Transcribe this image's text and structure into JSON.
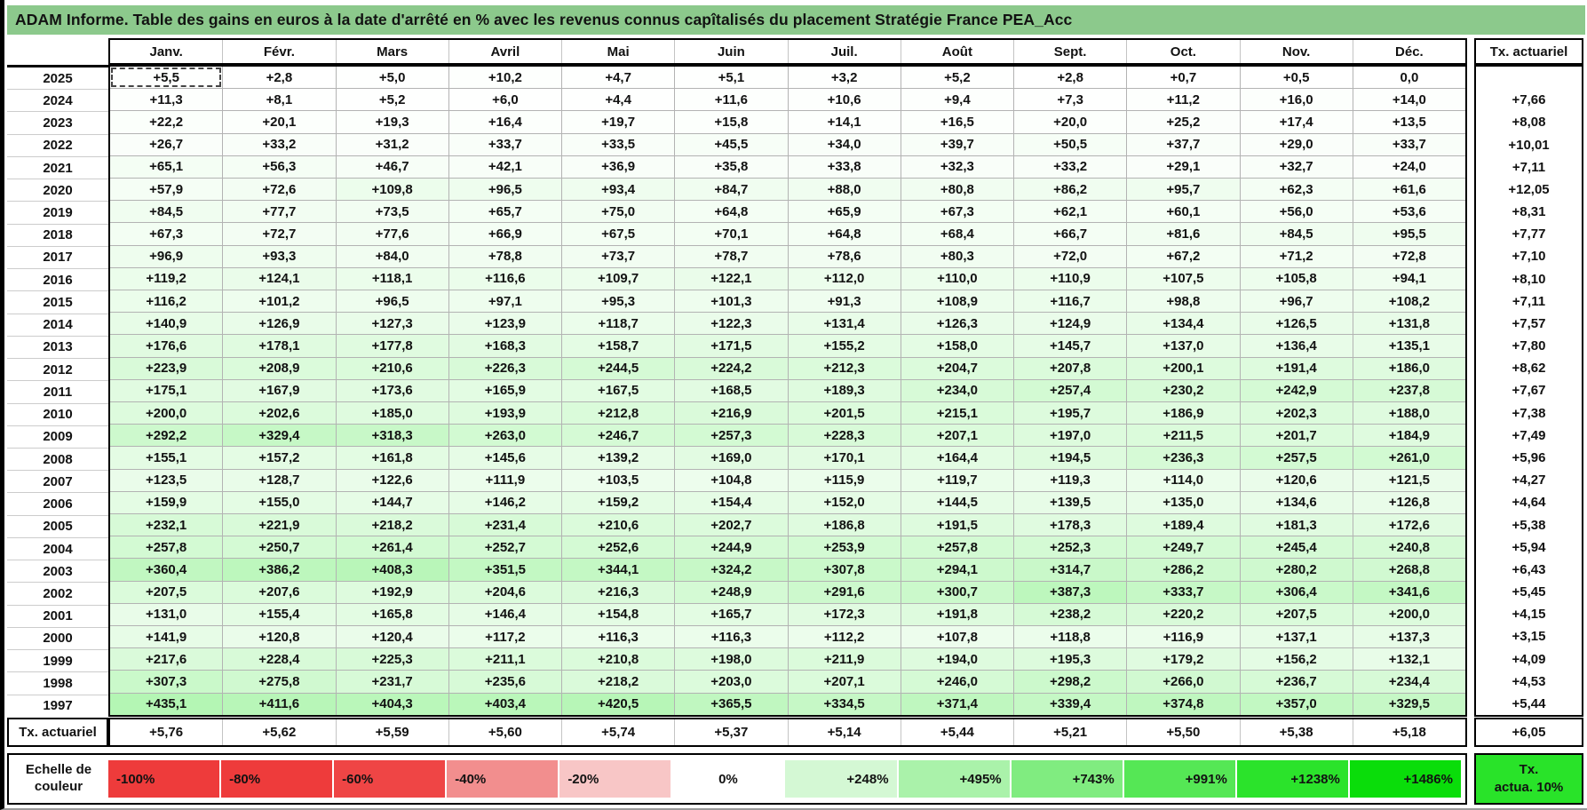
{
  "title": "ADAM Informe. Table des gains en euros à la date d'arrêté en % avec les revenus connus capîtalisés du placement Stratégie France PEA_Acc",
  "months": [
    "Janv.",
    "Févr.",
    "Mars",
    "Avril",
    "Mai",
    "Juin",
    "Juil.",
    "Août",
    "Sept.",
    "Oct.",
    "Nov.",
    "Déc."
  ],
  "tx_header": "Tx. actuariel",
  "footer_label": "Tx. actuariel",
  "footer_tx": "+6,05",
  "legend_label_line1": "Echelle de",
  "legend_label_line2": "couleur",
  "tx_box_line1": "Tx.",
  "tx_box_line2": "actua. 10%",
  "scale_max_value": 1486,
  "selected_cell": {
    "year": "2025",
    "month": "Janv."
  },
  "colors": {
    "title_bg": "#8cc98c",
    "scale_max_green": "#00e000",
    "tx_box_green": "#29e329",
    "grid_line": "#b3b3b3"
  },
  "rows": [
    {
      "year": "2025",
      "values": [
        "+5,5",
        "+2,8",
        "+5,0",
        "+10,2",
        "+4,7",
        "+5,1",
        "+3,2",
        "+5,2",
        "+2,8",
        "+0,7",
        "+0,5",
        "0,0"
      ],
      "tx": ""
    },
    {
      "year": "2024",
      "values": [
        "+11,3",
        "+8,1",
        "+5,2",
        "+6,0",
        "+4,4",
        "+11,6",
        "+10,6",
        "+9,4",
        "+7,3",
        "+11,2",
        "+16,0",
        "+14,0"
      ],
      "tx": "+7,66"
    },
    {
      "year": "2023",
      "values": [
        "+22,2",
        "+20,1",
        "+19,3",
        "+16,4",
        "+19,7",
        "+15,8",
        "+14,1",
        "+16,5",
        "+20,0",
        "+25,2",
        "+17,4",
        "+13,5"
      ],
      "tx": "+8,08"
    },
    {
      "year": "2022",
      "values": [
        "+26,7",
        "+33,2",
        "+31,2",
        "+33,7",
        "+33,5",
        "+45,5",
        "+34,0",
        "+39,7",
        "+50,5",
        "+37,7",
        "+29,0",
        "+33,7"
      ],
      "tx": "+10,01"
    },
    {
      "year": "2021",
      "values": [
        "+65,1",
        "+56,3",
        "+46,7",
        "+42,1",
        "+36,9",
        "+35,8",
        "+33,8",
        "+32,3",
        "+33,2",
        "+29,1",
        "+32,7",
        "+24,0"
      ],
      "tx": "+7,11"
    },
    {
      "year": "2020",
      "values": [
        "+57,9",
        "+72,6",
        "+109,8",
        "+96,5",
        "+93,4",
        "+84,7",
        "+88,0",
        "+80,8",
        "+86,2",
        "+95,7",
        "+62,3",
        "+61,6"
      ],
      "tx": "+12,05"
    },
    {
      "year": "2019",
      "values": [
        "+84,5",
        "+77,7",
        "+73,5",
        "+65,7",
        "+75,0",
        "+64,8",
        "+65,9",
        "+67,3",
        "+62,1",
        "+60,1",
        "+56,0",
        "+53,6"
      ],
      "tx": "+8,31"
    },
    {
      "year": "2018",
      "values": [
        "+67,3",
        "+72,7",
        "+77,6",
        "+66,9",
        "+67,5",
        "+70,1",
        "+64,8",
        "+68,4",
        "+66,7",
        "+81,6",
        "+84,5",
        "+95,5"
      ],
      "tx": "+7,77"
    },
    {
      "year": "2017",
      "values": [
        "+96,9",
        "+93,3",
        "+84,0",
        "+78,8",
        "+73,7",
        "+78,7",
        "+78,6",
        "+80,3",
        "+72,0",
        "+67,2",
        "+71,2",
        "+72,8"
      ],
      "tx": "+7,10"
    },
    {
      "year": "2016",
      "values": [
        "+119,2",
        "+124,1",
        "+118,1",
        "+116,6",
        "+109,7",
        "+122,1",
        "+112,0",
        "+110,0",
        "+110,9",
        "+107,5",
        "+105,8",
        "+94,1"
      ],
      "tx": "+8,10"
    },
    {
      "year": "2015",
      "values": [
        "+116,2",
        "+101,2",
        "+96,5",
        "+97,1",
        "+95,3",
        "+101,3",
        "+91,3",
        "+108,9",
        "+116,7",
        "+98,8",
        "+96,7",
        "+108,2"
      ],
      "tx": "+7,11"
    },
    {
      "year": "2014",
      "values": [
        "+140,9",
        "+126,9",
        "+127,3",
        "+123,9",
        "+118,7",
        "+122,3",
        "+131,4",
        "+126,3",
        "+124,9",
        "+134,4",
        "+126,5",
        "+131,8"
      ],
      "tx": "+7,57"
    },
    {
      "year": "2013",
      "values": [
        "+176,6",
        "+178,1",
        "+177,8",
        "+168,3",
        "+158,7",
        "+171,5",
        "+155,2",
        "+158,0",
        "+145,7",
        "+137,0",
        "+136,4",
        "+135,1"
      ],
      "tx": "+7,80"
    },
    {
      "year": "2012",
      "values": [
        "+223,9",
        "+208,9",
        "+210,6",
        "+226,3",
        "+244,5",
        "+224,2",
        "+212,3",
        "+204,7",
        "+207,8",
        "+200,1",
        "+191,4",
        "+186,0"
      ],
      "tx": "+8,62"
    },
    {
      "year": "2011",
      "values": [
        "+175,1",
        "+167,9",
        "+173,6",
        "+165,9",
        "+167,5",
        "+168,5",
        "+189,3",
        "+234,0",
        "+257,4",
        "+230,2",
        "+242,9",
        "+237,8"
      ],
      "tx": "+7,67"
    },
    {
      "year": "2010",
      "values": [
        "+200,0",
        "+202,6",
        "+185,0",
        "+193,9",
        "+212,8",
        "+216,9",
        "+201,5",
        "+215,1",
        "+195,7",
        "+186,9",
        "+202,3",
        "+188,0"
      ],
      "tx": "+7,38"
    },
    {
      "year": "2009",
      "values": [
        "+292,2",
        "+329,4",
        "+318,3",
        "+263,0",
        "+246,7",
        "+257,3",
        "+228,3",
        "+207,1",
        "+197,0",
        "+211,5",
        "+201,7",
        "+184,9"
      ],
      "tx": "+7,49"
    },
    {
      "year": "2008",
      "values": [
        "+155,1",
        "+157,2",
        "+161,8",
        "+145,6",
        "+139,2",
        "+169,0",
        "+170,1",
        "+164,4",
        "+194,5",
        "+236,3",
        "+257,5",
        "+261,0"
      ],
      "tx": "+5,96"
    },
    {
      "year": "2007",
      "values": [
        "+123,5",
        "+128,7",
        "+122,6",
        "+111,9",
        "+103,5",
        "+104,8",
        "+115,9",
        "+119,7",
        "+119,3",
        "+114,0",
        "+120,6",
        "+121,5"
      ],
      "tx": "+4,27"
    },
    {
      "year": "2006",
      "values": [
        "+159,9",
        "+155,0",
        "+144,7",
        "+146,2",
        "+159,2",
        "+154,4",
        "+152,0",
        "+144,5",
        "+139,5",
        "+135,0",
        "+134,6",
        "+126,8"
      ],
      "tx": "+4,64"
    },
    {
      "year": "2005",
      "values": [
        "+232,1",
        "+221,9",
        "+218,2",
        "+231,4",
        "+210,6",
        "+202,7",
        "+186,8",
        "+191,5",
        "+178,3",
        "+189,4",
        "+181,3",
        "+172,6"
      ],
      "tx": "+5,38"
    },
    {
      "year": "2004",
      "values": [
        "+257,8",
        "+250,7",
        "+261,4",
        "+252,7",
        "+252,6",
        "+244,9",
        "+253,9",
        "+257,8",
        "+252,3",
        "+249,7",
        "+245,4",
        "+240,8"
      ],
      "tx": "+5,94"
    },
    {
      "year": "2003",
      "values": [
        "+360,4",
        "+386,2",
        "+408,3",
        "+351,5",
        "+344,1",
        "+324,2",
        "+307,8",
        "+294,1",
        "+314,7",
        "+286,2",
        "+280,2",
        "+268,8"
      ],
      "tx": "+6,43"
    },
    {
      "year": "2002",
      "values": [
        "+207,5",
        "+207,6",
        "+192,9",
        "+204,6",
        "+216,3",
        "+248,9",
        "+291,6",
        "+300,7",
        "+387,3",
        "+333,7",
        "+306,4",
        "+341,6"
      ],
      "tx": "+5,45"
    },
    {
      "year": "2001",
      "values": [
        "+131,0",
        "+155,4",
        "+165,8",
        "+146,4",
        "+154,8",
        "+165,7",
        "+172,3",
        "+191,8",
        "+238,2",
        "+220,2",
        "+207,5",
        "+200,0"
      ],
      "tx": "+4,15"
    },
    {
      "year": "2000",
      "values": [
        "+141,9",
        "+120,8",
        "+120,4",
        "+117,2",
        "+116,3",
        "+116,3",
        "+112,2",
        "+107,8",
        "+118,8",
        "+116,9",
        "+137,1",
        "+137,3"
      ],
      "tx": "+3,15"
    },
    {
      "year": "1999",
      "values": [
        "+217,6",
        "+228,4",
        "+225,3",
        "+211,1",
        "+210,8",
        "+198,0",
        "+211,9",
        "+194,0",
        "+195,3",
        "+179,2",
        "+156,2",
        "+132,1"
      ],
      "tx": "+4,09"
    },
    {
      "year": "1998",
      "values": [
        "+307,3",
        "+275,8",
        "+231,7",
        "+235,6",
        "+218,2",
        "+203,0",
        "+207,1",
        "+246,0",
        "+298,2",
        "+266,0",
        "+236,7",
        "+234,4"
      ],
      "tx": "+4,53"
    },
    {
      "year": "1997",
      "values": [
        "+435,1",
        "+411,6",
        "+404,3",
        "+403,4",
        "+420,5",
        "+365,5",
        "+334,5",
        "+371,4",
        "+339,4",
        "+374,8",
        "+357,0",
        "+329,5"
      ],
      "tx": "+5,44"
    }
  ],
  "footer_values": [
    "+5,76",
    "+5,62",
    "+5,59",
    "+5,60",
    "+5,74",
    "+5,37",
    "+5,14",
    "+5,44",
    "+5,21",
    "+5,50",
    "+5,38",
    "+5,18"
  ],
  "legend": [
    {
      "label": "-100%",
      "color": "#ee3b3b",
      "align": "left"
    },
    {
      "label": "-80%",
      "color": "#ee3b3b",
      "align": "left"
    },
    {
      "label": "-60%",
      "color": "#ef4545",
      "align": "left"
    },
    {
      "label": "-40%",
      "color": "#f28e8e",
      "align": "left"
    },
    {
      "label": "-20%",
      "color": "#f8c6c6",
      "align": "left"
    },
    {
      "label": "0%",
      "color": "#ffffff",
      "align": "center"
    },
    {
      "label": "+248%",
      "color": "#d4f8d4",
      "align": "right"
    },
    {
      "label": "+495%",
      "color": "#aaf2aa",
      "align": "right"
    },
    {
      "label": "+743%",
      "color": "#80ec80",
      "align": "right"
    },
    {
      "label": "+991%",
      "color": "#55e755",
      "align": "right"
    },
    {
      "label": "+1238%",
      "color": "#2be32b",
      "align": "right"
    },
    {
      "label": "+1486%",
      "color": "#0add0a",
      "align": "right"
    }
  ]
}
